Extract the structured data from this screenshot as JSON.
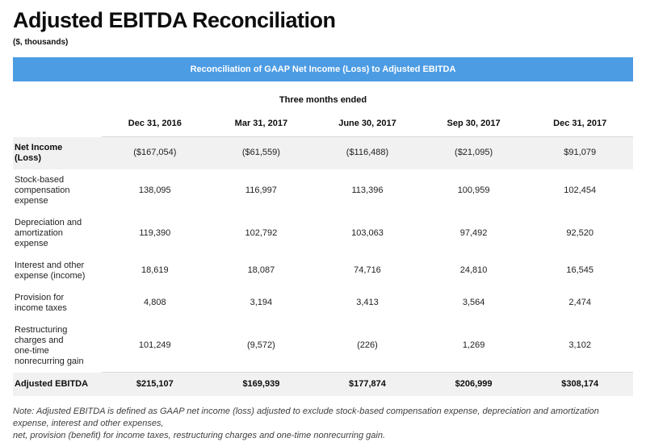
{
  "page": {
    "title": "Adjusted EBITDA Reconciliation",
    "subtitle": "($, thousands)",
    "banner_label": "Reconciliation of GAAP Net Income (Loss) to Adjusted EBITDA",
    "period_header": "Three months ended",
    "note": "Note: Adjusted EBITDA is defined as GAAP net income (loss) adjusted to exclude stock-based compensation expense, depreciation and amortization expense, interest and other expenses,\nnet, provision (benefit) for income taxes, restructuring charges and one-time nonrecurring gain."
  },
  "colors": {
    "banner_blue": "#4c9ce4",
    "row_highlight_gray": "#f1f1f2",
    "divider_gray": "#d9d9d9"
  },
  "table": {
    "column_headers": [
      "Dec 31, 2016",
      "Mar 31, 2017",
      "June 30, 2017",
      "Sep 30, 2017",
      "Dec 31, 2017"
    ],
    "rows": [
      {
        "label": "Net Income\n(Loss)",
        "values": [
          "($167,054)",
          "($61,559)",
          "($116,488)",
          "($21,095)",
          "$91,079"
        ],
        "highlight": true,
        "label_bold": true,
        "total": false
      },
      {
        "label": "Stock-based\ncompensation\nexpense",
        "values": [
          "138,095",
          "116,997",
          "113,396",
          "100,959",
          "102,454"
        ],
        "highlight": false,
        "label_bold": false,
        "total": false
      },
      {
        "label": "Depreciation and\namortization\nexpense",
        "values": [
          "119,390",
          "102,792",
          "103,063",
          "97,492",
          "92,520"
        ],
        "highlight": false,
        "label_bold": false,
        "total": false
      },
      {
        "label": "Interest and other\nexpense (income)",
        "values": [
          "18,619",
          "18,087",
          "74,716",
          "24,810",
          "16,545"
        ],
        "highlight": false,
        "label_bold": false,
        "total": false
      },
      {
        "label": "Provision for\nincome taxes",
        "values": [
          "4,808",
          "3,194",
          "3,413",
          "3,564",
          "2,474"
        ],
        "highlight": false,
        "label_bold": false,
        "total": false
      },
      {
        "label": "Restructuring\ncharges and\none-time\nnonrecurring gain",
        "values": [
          "101,249",
          "(9,572)",
          "(226)",
          "1,269",
          "3,102"
        ],
        "highlight": false,
        "label_bold": false,
        "total": false
      },
      {
        "label": "Adjusted EBITDA",
        "values": [
          "$215,107",
          "$169,939",
          "$177,874",
          "$206,999",
          "$308,174"
        ],
        "highlight": true,
        "label_bold": true,
        "total": true
      }
    ]
  }
}
